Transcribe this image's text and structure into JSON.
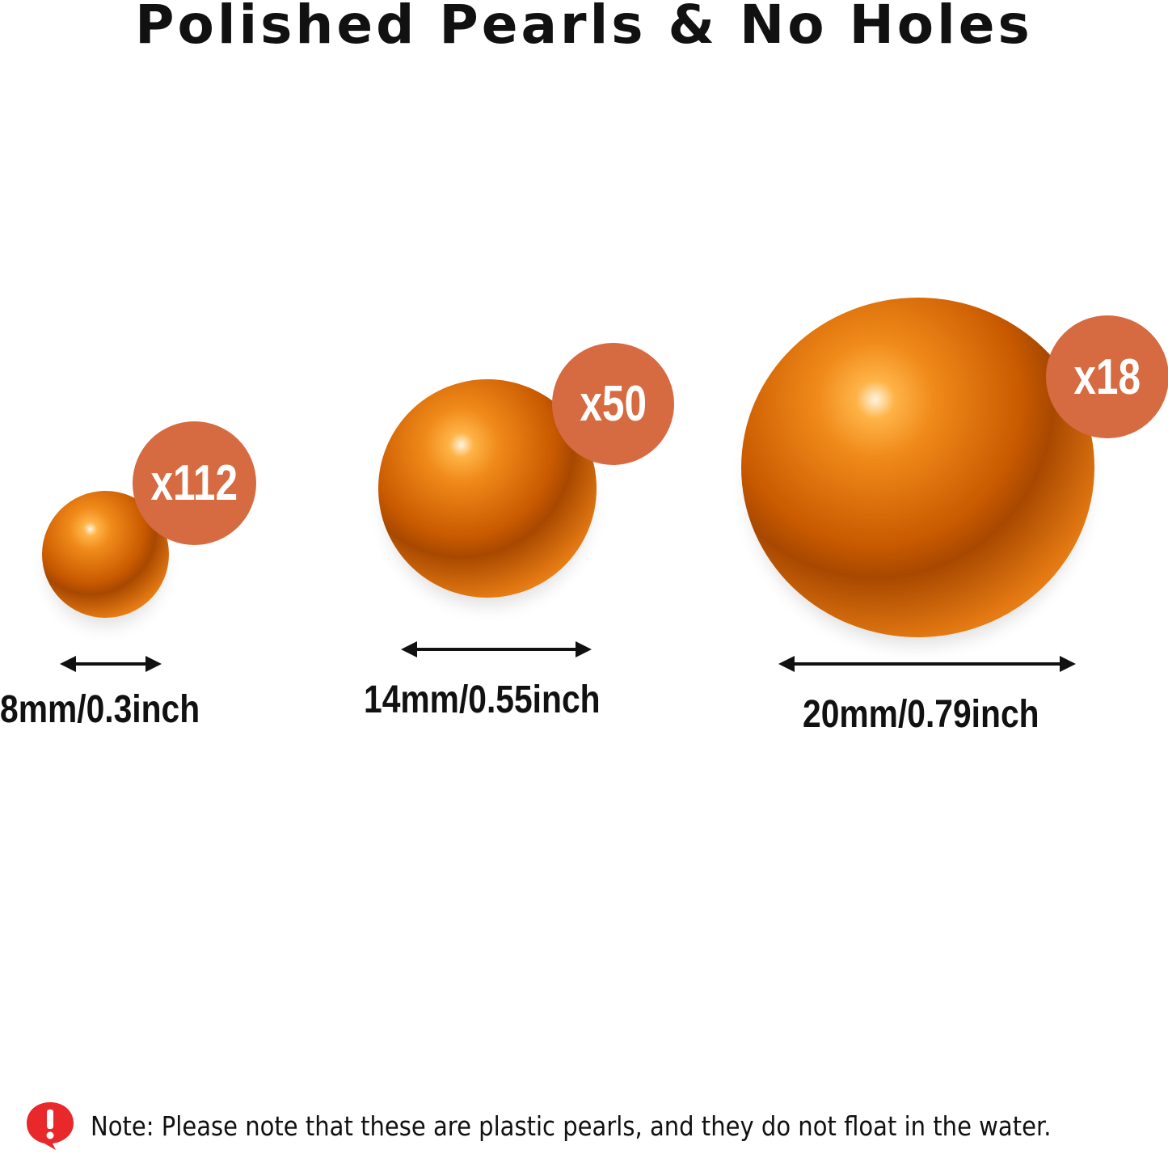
{
  "title": "Polished Pearls & No Holes",
  "colors": {
    "pearl": "#e87a0a",
    "badge": "#d66a40",
    "note_icon": "#e8282a"
  },
  "pearls": [
    {
      "quantity": "x112",
      "size": "8mm/0.3inch"
    },
    {
      "quantity": "x50",
      "size": "14mm/0.55inch"
    },
    {
      "quantity": "x18",
      "size": "20mm/0.79inch"
    }
  ],
  "note": {
    "icon": "exclamation-speech-bubble-icon",
    "text": "Note: Please note that these are plastic pearls, and they do not float in the water."
  }
}
